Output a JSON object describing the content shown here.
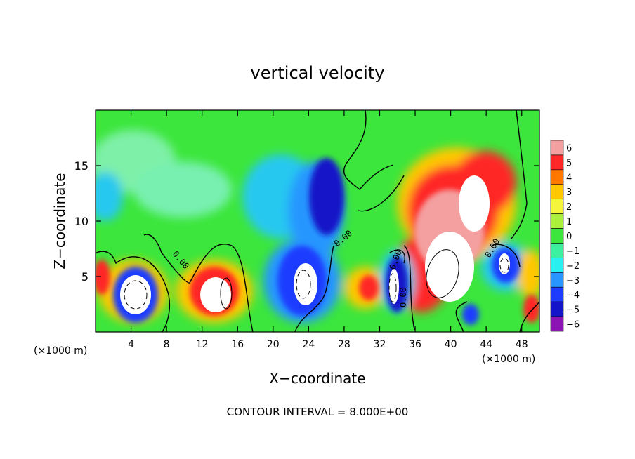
{
  "chart_data": {
    "type": "heatmap",
    "title": "vertical velocity",
    "xlabel": "X−coordinate",
    "ylabel": "Z−coordinate",
    "x_unit": "(×1000 m)",
    "x_unit_right": "(×1000 m)",
    "xlim": [
      0,
      50
    ],
    "ylim": [
      0,
      20
    ],
    "x_ticks": [
      "4",
      "8",
      "12",
      "16",
      "20",
      "24",
      "28",
      "32",
      "36",
      "40",
      "44",
      "48"
    ],
    "x_tick_values": [
      4,
      8,
      12,
      16,
      20,
      24,
      28,
      32,
      36,
      40,
      44,
      48
    ],
    "y_ticks": [
      "5",
      "10",
      "15"
    ],
    "y_tick_values": [
      5,
      10,
      15
    ],
    "contour_note": "CONTOUR INTERVAL = 8.000E+00",
    "contour_labels": [
      "0.00",
      "0.00",
      "0.00",
      "0.00",
      "0.00"
    ],
    "colorbar": {
      "labels": [
        "6",
        "5",
        "4",
        "3",
        "2",
        "1",
        "0",
        "−1",
        "−2",
        "−3",
        "−4",
        "−5",
        "−6"
      ],
      "colors": [
        "#f4a0a0",
        "#ff2828",
        "#ff7800",
        "#ffc800",
        "#f5f53c",
        "#aaf03c",
        "#3ce63c",
        "#3cf0a0",
        "#28f0f0",
        "#2896ff",
        "#1e3cff",
        "#1414c8",
        "#8c14b4"
      ]
    },
    "features": [
      {
        "kind": "downdraft",
        "x": 5,
        "z": 4,
        "value": -6
      },
      {
        "kind": "updraft",
        "x": 13.5,
        "z": 3.2,
        "value": 6
      },
      {
        "kind": "downdraft",
        "x": 22,
        "z": 5,
        "value": -6
      },
      {
        "kind": "downdraft",
        "x": 34,
        "z": 4,
        "value": -6
      },
      {
        "kind": "updraft",
        "x": 41,
        "z": 9,
        "value": 6
      },
      {
        "kind": "downdraft",
        "x": 46,
        "z": 6,
        "value": -6
      }
    ]
  }
}
